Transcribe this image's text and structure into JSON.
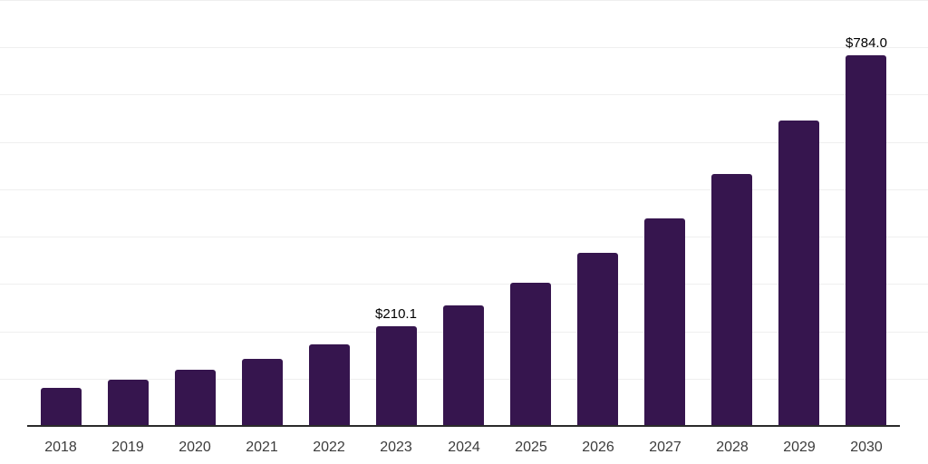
{
  "chart_data": {
    "type": "bar",
    "title": "",
    "xlabel": "",
    "ylabel": "",
    "categories": [
      "2018",
      "2019",
      "2020",
      "2021",
      "2022",
      "2023",
      "2024",
      "2025",
      "2026",
      "2027",
      "2028",
      "2029",
      "2030"
    ],
    "values": [
      81,
      97,
      119,
      141,
      172,
      210.1,
      254,
      302,
      366,
      439,
      533,
      646,
      784
    ],
    "data_labels": {
      "2023": "$210.1",
      "2030": "$784.0"
    },
    "ylim": [
      0,
      900
    ],
    "gridline_step": 100,
    "grid": true,
    "legend_position": "none",
    "colors": {
      "bar": "#36154E",
      "background": "#ffffff",
      "gridline": "#efefef",
      "axis_line": "#2b2b2b",
      "tick_label": "#3c3c3c",
      "data_label": "#000000"
    }
  }
}
